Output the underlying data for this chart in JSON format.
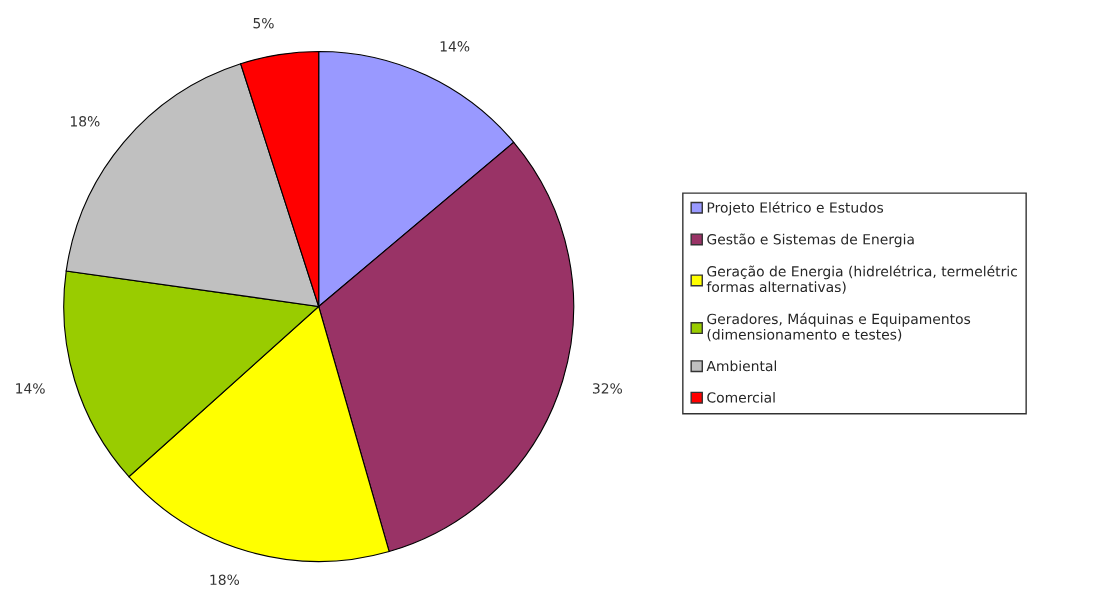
{
  "chart_data": {
    "type": "pie",
    "categories": [
      "Projeto Elétrico e Estudos",
      "Gestão e Sistemas de Energia",
      "Geração de Energia (hidrelétrica, termelétric\nformas alternativas)",
      "Geradores, Máquinas e Equipamentos\n(dimensionamento e testes)",
      "Ambiental",
      "Comercial"
    ],
    "values": [
      14,
      32,
      18,
      14,
      18,
      5
    ],
    "colors": [
      "#9999ff",
      "#993366",
      "#ffff00",
      "#99cc00",
      "#c0c0c0",
      "#ff0000"
    ],
    "value_labels": [
      "14%",
      "32%",
      "18%",
      "14%",
      "18%",
      "5%"
    ],
    "legend": "right"
  }
}
